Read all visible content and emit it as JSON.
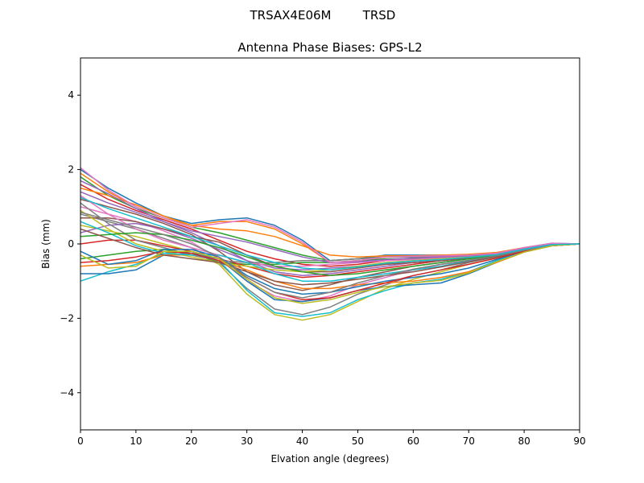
{
  "figure": {
    "suptitle_antenna": "TRSAX4E06M",
    "suptitle_radome": "TRSD"
  },
  "chart_data": {
    "type": "line",
    "title": "Antenna Phase Biases: GPS-L2",
    "xlabel": "Elvation angle (degrees)",
    "ylabel": "Bias (mm)",
    "xlim": [
      0,
      90
    ],
    "ylim": [
      -5,
      5
    ],
    "xticks": [
      0,
      10,
      20,
      30,
      40,
      50,
      60,
      70,
      80,
      90
    ],
    "yticks": [
      -4,
      -2,
      0,
      2,
      4
    ],
    "ytick_labels": [
      "−4",
      "−2",
      "0",
      "2",
      "4"
    ],
    "grid": false,
    "legend": "none",
    "x": [
      0,
      5,
      10,
      15,
      20,
      25,
      30,
      35,
      40,
      45,
      50,
      55,
      60,
      65,
      70,
      75,
      80,
      85,
      90
    ],
    "colors": [
      "#1f77b4",
      "#ff7f0e",
      "#2ca02c",
      "#d62728",
      "#9467bd",
      "#8c564b",
      "#e377c2",
      "#7f7f7f",
      "#bcbd22",
      "#17becf"
    ],
    "series": [
      {
        "values": [
          2.0,
          1.5,
          1.1,
          0.75,
          0.55,
          0.65,
          0.7,
          0.5,
          0.1,
          -0.45,
          -0.4,
          -0.3,
          -0.3,
          -0.3,
          -0.3,
          -0.25,
          -0.1,
          0.02,
          0.0
        ]
      },
      {
        "values": [
          1.9,
          1.4,
          1.0,
          0.7,
          0.5,
          0.6,
          0.6,
          0.4,
          0.0,
          -0.5,
          -0.45,
          -0.35,
          -0.35,
          -0.33,
          -0.3,
          -0.25,
          -0.1,
          0.0,
          0.0
        ]
      },
      {
        "values": [
          1.8,
          1.3,
          0.95,
          0.7,
          0.45,
          0.3,
          0.1,
          -0.1,
          -0.3,
          -0.45,
          -0.4,
          -0.35,
          -0.35,
          -0.33,
          -0.3,
          -0.25,
          -0.12,
          0.0,
          0.0
        ]
      },
      {
        "values": [
          1.6,
          1.2,
          0.9,
          0.65,
          0.4,
          0.1,
          -0.2,
          -0.4,
          -0.55,
          -0.6,
          -0.55,
          -0.45,
          -0.4,
          -0.35,
          -0.32,
          -0.27,
          -0.12,
          0.0,
          0.0
        ]
      },
      {
        "values": [
          1.4,
          1.1,
          0.85,
          0.6,
          0.3,
          -0.05,
          -0.45,
          -0.75,
          -0.85,
          -0.8,
          -0.7,
          -0.6,
          -0.5,
          -0.45,
          -0.38,
          -0.3,
          -0.15,
          -0.03,
          0.0
        ]
      },
      {
        "values": [
          1.2,
          1.0,
          0.8,
          0.55,
          0.25,
          -0.2,
          -0.75,
          -1.1,
          -1.25,
          -1.1,
          -0.9,
          -0.75,
          -0.6,
          -0.5,
          -0.4,
          -0.3,
          -0.17,
          -0.05,
          0.0
        ]
      },
      {
        "values": [
          1.0,
          0.8,
          0.6,
          0.35,
          0.05,
          -0.4,
          -1.0,
          -1.4,
          -1.55,
          -1.4,
          -1.1,
          -0.9,
          -0.7,
          -0.55,
          -0.45,
          -0.32,
          -0.18,
          -0.05,
          0.0
        ]
      },
      {
        "values": [
          0.8,
          0.6,
          0.4,
          0.15,
          -0.1,
          -0.5,
          -1.2,
          -1.75,
          -1.9,
          -1.7,
          -1.35,
          -1.1,
          -0.85,
          -0.7,
          -0.5,
          -0.35,
          -0.2,
          -0.05,
          0.0
        ]
      },
      {
        "values": [
          0.5,
          0.35,
          0.2,
          0.0,
          -0.2,
          -0.55,
          -1.35,
          -1.9,
          -2.05,
          -1.9,
          -1.55,
          -1.2,
          -0.95,
          -0.75,
          -0.55,
          -0.38,
          -0.2,
          -0.05,
          0.0
        ]
      },
      {
        "values": [
          -1.0,
          -0.75,
          -0.55,
          -0.25,
          -0.2,
          -0.45,
          -1.25,
          -1.85,
          -1.95,
          -1.85,
          -1.5,
          -1.25,
          -1.05,
          -0.95,
          -0.75,
          -0.45,
          -0.22,
          -0.05,
          0.0
        ]
      },
      {
        "values": [
          -0.8,
          -0.8,
          -0.7,
          -0.3,
          -0.25,
          -0.4,
          -1.0,
          -1.5,
          -1.55,
          -1.45,
          -1.25,
          -1.15,
          -1.1,
          -1.05,
          -0.8,
          -0.5,
          -0.22,
          -0.05,
          0.0
        ]
      },
      {
        "values": [
          -0.6,
          -0.55,
          -0.5,
          -0.3,
          -0.3,
          -0.45,
          -0.7,
          -1.0,
          -1.2,
          -1.2,
          -1.1,
          -1.05,
          -1.0,
          -0.9,
          -0.75,
          -0.5,
          -0.22,
          -0.05,
          0.0
        ]
      },
      {
        "values": [
          -0.4,
          -0.3,
          -0.2,
          -0.15,
          -0.25,
          -0.5,
          -0.55,
          -0.55,
          -0.5,
          -0.5,
          -0.45,
          -0.4,
          -0.4,
          -0.38,
          -0.35,
          -0.28,
          -0.15,
          -0.02,
          0.0
        ]
      },
      {
        "values": [
          0.0,
          0.1,
          0.1,
          -0.05,
          -0.2,
          -0.4,
          -0.6,
          -0.8,
          -0.9,
          -0.85,
          -0.75,
          -0.65,
          -0.55,
          -0.45,
          -0.38,
          -0.3,
          -0.15,
          -0.03,
          0.0
        ]
      },
      {
        "values": [
          0.3,
          0.5,
          0.55,
          0.4,
          0.15,
          -0.15,
          -0.45,
          -0.65,
          -0.7,
          -0.65,
          -0.6,
          -0.55,
          -0.5,
          -0.45,
          -0.38,
          -0.3,
          -0.15,
          -0.03,
          0.0
        ]
      },
      {
        "values": [
          0.7,
          0.7,
          0.6,
          0.4,
          0.2,
          0.05,
          -0.3,
          -0.6,
          -0.75,
          -0.75,
          -0.65,
          -0.55,
          -0.5,
          -0.45,
          -0.38,
          -0.3,
          -0.15,
          -0.03,
          0.0
        ]
      },
      {
        "values": [
          1.3,
          0.8,
          0.4,
          0.1,
          -0.1,
          -0.3,
          -0.5,
          -0.6,
          -0.6,
          -0.55,
          -0.5,
          -0.45,
          -0.42,
          -0.38,
          -0.34,
          -0.28,
          -0.14,
          -0.02,
          0.0
        ]
      },
      {
        "values": [
          1.1,
          0.55,
          0.1,
          -0.1,
          -0.3,
          -0.45,
          -0.5,
          -0.5,
          -0.45,
          -0.45,
          -0.4,
          -0.35,
          -0.35,
          -0.33,
          -0.3,
          -0.25,
          -0.12,
          0.0,
          0.0
        ]
      },
      {
        "values": [
          0.9,
          0.4,
          0.0,
          -0.2,
          -0.35,
          -0.5,
          -0.6,
          -0.7,
          -0.75,
          -0.7,
          -0.6,
          -0.5,
          -0.45,
          -0.4,
          -0.35,
          -0.28,
          -0.14,
          -0.02,
          0.0
        ]
      },
      {
        "values": [
          0.6,
          0.3,
          -0.05,
          -0.25,
          -0.3,
          -0.3,
          -0.5,
          -0.8,
          -1.0,
          -1.0,
          -0.9,
          -0.8,
          -0.7,
          -0.6,
          -0.45,
          -0.33,
          -0.17,
          -0.04,
          0.0
        ]
      },
      {
        "values": [
          -0.2,
          -0.55,
          -0.45,
          -0.15,
          -0.15,
          -0.35,
          -0.85,
          -1.2,
          -1.35,
          -1.3,
          -1.15,
          -1.0,
          -0.9,
          -0.8,
          -0.65,
          -0.42,
          -0.2,
          -0.05,
          0.0
        ]
      },
      {
        "values": [
          1.5,
          1.3,
          1.05,
          0.75,
          0.5,
          0.4,
          0.35,
          0.2,
          -0.05,
          -0.3,
          -0.35,
          -0.32,
          -0.32,
          -0.3,
          -0.28,
          -0.23,
          -0.1,
          0.01,
          0.0
        ]
      },
      {
        "values": [
          0.2,
          0.25,
          0.3,
          0.25,
          0.1,
          -0.1,
          -0.35,
          -0.6,
          -0.75,
          -0.85,
          -0.8,
          -0.7,
          -0.6,
          -0.5,
          -0.4,
          -0.3,
          -0.15,
          -0.03,
          0.0
        ]
      },
      {
        "values": [
          -0.5,
          -0.45,
          -0.35,
          -0.2,
          -0.25,
          -0.45,
          -0.9,
          -1.3,
          -1.5,
          -1.45,
          -1.25,
          -1.05,
          -0.85,
          -0.7,
          -0.55,
          -0.38,
          -0.2,
          -0.05,
          0.0
        ]
      },
      {
        "values": [
          1.7,
          1.35,
          0.95,
          0.6,
          0.35,
          0.2,
          0.05,
          -0.15,
          -0.35,
          -0.5,
          -0.48,
          -0.42,
          -0.38,
          -0.35,
          -0.32,
          -0.26,
          -0.12,
          0.0,
          0.0
        ]
      },
      {
        "values": [
          0.4,
          0.15,
          -0.1,
          -0.3,
          -0.4,
          -0.5,
          -0.75,
          -1.0,
          -1.1,
          -1.05,
          -0.95,
          -0.85,
          -0.75,
          -0.62,
          -0.48,
          -0.34,
          -0.17,
          -0.04,
          0.0
        ]
      },
      {
        "values": [
          2.05,
          1.45,
          1.0,
          0.7,
          0.45,
          0.55,
          0.65,
          0.45,
          0.05,
          -0.5,
          -0.45,
          -0.35,
          -0.33,
          -0.32,
          -0.3,
          -0.25,
          -0.1,
          0.02,
          0.0
        ]
      },
      {
        "values": [
          0.85,
          0.65,
          0.45,
          0.25,
          0.0,
          -0.35,
          -0.9,
          -1.3,
          -1.45,
          -1.3,
          -1.05,
          -0.85,
          -0.68,
          -0.55,
          -0.44,
          -0.32,
          -0.17,
          -0.04,
          0.0
        ]
      },
      {
        "values": [
          -0.3,
          -0.65,
          -0.6,
          -0.2,
          -0.2,
          -0.4,
          -0.95,
          -1.45,
          -1.6,
          -1.5,
          -1.3,
          -1.15,
          -1.05,
          -0.98,
          -0.78,
          -0.48,
          -0.22,
          -0.05,
          0.0
        ]
      },
      {
        "values": [
          1.25,
          0.95,
          0.7,
          0.45,
          0.2,
          -0.05,
          -0.3,
          -0.5,
          -0.65,
          -0.7,
          -0.62,
          -0.52,
          -0.46,
          -0.42,
          -0.36,
          -0.29,
          -0.14,
          -0.02,
          0.0
        ]
      }
    ]
  }
}
